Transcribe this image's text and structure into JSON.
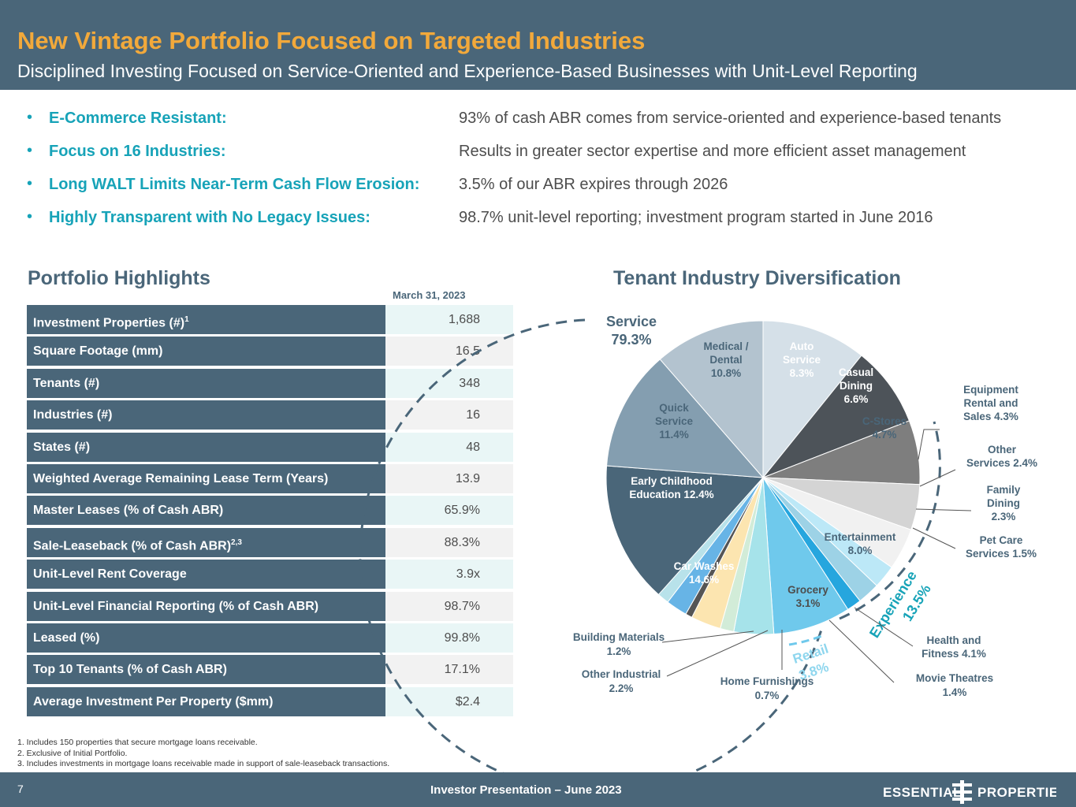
{
  "header": {
    "title": "New Vintage Portfolio Focused on Targeted Industries",
    "subtitle": "Disciplined Investing Focused on Service-Oriented and Experience-Based Businesses with Unit-Level Reporting"
  },
  "bullets": [
    {
      "label": "E-Commerce Resistant:",
      "desc": "93% of cash ABR comes from service-oriented and experience-based tenants"
    },
    {
      "label": "Focus on 16 Industries:",
      "desc": "Results in greater sector expertise and more efficient asset management"
    },
    {
      "label": "Long WALT Limits Near-Term Cash Flow Erosion:",
      "desc": "3.5% of our ABR expires through 2026"
    },
    {
      "label": "Highly Transparent with No Legacy Issues:",
      "desc": "98.7% unit-level reporting; investment program started in June 2016"
    }
  ],
  "highlights": {
    "title": "Portfolio Highlights",
    "date": "March 31, 2023",
    "rows": [
      {
        "label": "Investment Properties (#)",
        "sup": "1",
        "value": "1,688"
      },
      {
        "label": "Square Footage (mm)",
        "sup": "",
        "value": "16.5"
      },
      {
        "label": "Tenants (#)",
        "sup": "",
        "value": "348"
      },
      {
        "label": "Industries (#)",
        "sup": "",
        "value": "16"
      },
      {
        "label": "States (#)",
        "sup": "",
        "value": "48"
      },
      {
        "label": "Weighted Average Remaining Lease Term (Years)",
        "sup": "",
        "value": "13.9"
      },
      {
        "label": "Master Leases (% of Cash ABR)",
        "sup": "",
        "value": "65.9%"
      },
      {
        "label": "Sale-Leaseback (% of Cash ABR)",
        "sup": "2,3",
        "value": "88.3%"
      },
      {
        "label": "Unit-Level Rent Coverage",
        "sup": "",
        "value": "3.9x"
      },
      {
        "label": "Unit-Level Financial Reporting (% of Cash ABR)",
        "sup": "",
        "value": "98.7%"
      },
      {
        "label": "Leased (%)",
        "sup": "",
        "value": "99.8%"
      },
      {
        "label": "Top 10 Tenants (% of Cash ABR)",
        "sup": "",
        "value": "17.1%"
      },
      {
        "label": "Average Investment Per Property ($mm)",
        "sup": "",
        "value": "$2.4"
      }
    ]
  },
  "chart_data": {
    "type": "pie",
    "title": "Tenant Industry Diversification",
    "slices": [
      {
        "name": "Medical / Dental",
        "value": 10.8,
        "label": "10.8%",
        "color": "#d5e0e8"
      },
      {
        "name": "Auto Service",
        "value": 8.3,
        "label": "8.3%",
        "color": "#4d5359"
      },
      {
        "name": "Casual Dining",
        "value": 6.6,
        "label": "6.6%",
        "color": "#7e7e7e"
      },
      {
        "name": "C-Stores",
        "value": 4.7,
        "label": "4.7%",
        "color": "#d4d4d4"
      },
      {
        "name": "Equipment Rental and Sales",
        "value": 4.3,
        "label": "4.3%",
        "color": "#f1f1f1"
      },
      {
        "name": "Other Services",
        "value": 2.4,
        "label": "2.4%",
        "color": "#bce8f7"
      },
      {
        "name": "Family Dining",
        "value": 2.3,
        "label": "2.3%",
        "color": "#9dd2e6"
      },
      {
        "name": "Pet Care Services",
        "value": 1.5,
        "label": "1.5%",
        "color": "#26a6de"
      },
      {
        "name": "Entertainment",
        "value": 8.0,
        "label": "8.0%",
        "color": "#6fc9ec"
      },
      {
        "name": "Health and Fitness",
        "value": 4.1,
        "label": "4.1%",
        "color": "#a6e3ea"
      },
      {
        "name": "Movie Theatres",
        "value": 1.4,
        "label": "1.4%",
        "color": "#d2ecd8"
      },
      {
        "name": "Grocery",
        "value": 3.1,
        "label": "3.1%",
        "color": "#fce5b0"
      },
      {
        "name": "Home Furnishings",
        "value": 0.7,
        "label": "0.7%",
        "color": "#555555"
      },
      {
        "name": "Other Industrial",
        "value": 2.2,
        "label": "2.2%",
        "color": "#67b4e6"
      },
      {
        "name": "Building Materials",
        "value": 1.2,
        "label": "1.2%",
        "color": "#b8e2ea"
      },
      {
        "name": "Car Washes",
        "value": 14.6,
        "label": "14.6%",
        "color": "#4a6679"
      },
      {
        "name": "Early Childhood Education",
        "value": 12.4,
        "label": "12.4%",
        "color": "#849eb0"
      },
      {
        "name": "Quick Service",
        "value": 11.4,
        "label": "11.4%",
        "color": "#b3c3cf"
      }
    ],
    "groups": [
      {
        "name": "Service",
        "label": "79.3%",
        "value": 79.3
      },
      {
        "name": "Experience",
        "label": "13.5%",
        "value": 13.5
      },
      {
        "name": "Retail",
        "label": "3.8%",
        "value": 3.8
      }
    ],
    "labels": {
      "medical": "Medical /",
      "dental": "Dental",
      "auto": "Auto",
      "service": "Service",
      "casual": "Casual",
      "dining": "Dining",
      "cstores": "C-Stores",
      "quick": "Quick",
      "early": "Early Childhood",
      "education": "Education 12.4%",
      "carwashes": "Car Washes",
      "entertainment": "Entertainment",
      "grocery": "Grocery",
      "equip1": "Equipment",
      "equip2": "Rental and",
      "equip3": "Sales 4.3%",
      "other1": "Other",
      "other2": "Services 2.4%",
      "family1": "Family",
      "family2": "Dining",
      "pet1": "Pet Care",
      "pet2": "Services 1.5%",
      "health1": "Health and",
      "health2": "Fitness 4.1%",
      "movie": "Movie Theatres",
      "homef": "Home Furnishings",
      "otherind": "Other Industrial",
      "building": "Building Materials"
    }
  },
  "footnotes": [
    "1.  Includes 150 properties that secure mortgage loans receivable.",
    "2.  Exclusive of Initial Portfolio.",
    "3.  Includes investments in mortgage loans receivable made in support of sale-leaseback transactions."
  ],
  "footer": {
    "page": "7",
    "center": "Investor Presentation – June 2023",
    "logo_left": "ESSENTIAL",
    "logo_right": "PROPERTIES"
  }
}
